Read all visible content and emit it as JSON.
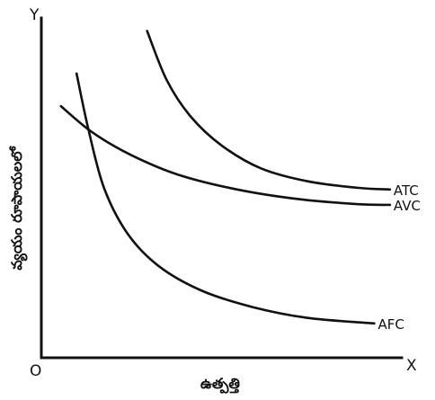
{
  "chart_data": {
    "type": "line",
    "xlabel": "ఉత్పత్తి",
    "ylabel": "వ్యయం రూపాయలలో",
    "axis_letters": {
      "x": "X",
      "y": "Y",
      "origin": "O"
    },
    "grid": false,
    "ticks": false,
    "series": [
      {
        "name": "ATC",
        "points": [
          [
            2.7,
            10
          ],
          [
            3.2,
            8.5
          ],
          [
            3.8,
            7.4
          ],
          [
            4.6,
            6.5
          ],
          [
            5.6,
            5.8
          ],
          [
            6.8,
            5.4
          ],
          [
            8.1,
            5.2
          ],
          [
            8.9,
            5.15
          ]
        ]
      },
      {
        "name": "AVC",
        "points": [
          [
            0.5,
            7.7
          ],
          [
            1.3,
            6.9
          ],
          [
            2.3,
            6.2
          ],
          [
            3.5,
            5.6
          ],
          [
            5.0,
            5.15
          ],
          [
            6.6,
            4.85
          ],
          [
            8.1,
            4.7
          ],
          [
            8.9,
            4.68
          ]
        ]
      },
      {
        "name": "AFC",
        "points": [
          [
            0.9,
            8.7
          ],
          [
            1.2,
            7.0
          ],
          [
            1.6,
            5.2
          ],
          [
            2.2,
            3.8
          ],
          [
            3.0,
            2.8
          ],
          [
            4.1,
            2.05
          ],
          [
            5.4,
            1.55
          ],
          [
            6.8,
            1.22
          ],
          [
            8.5,
            1.05
          ]
        ]
      }
    ],
    "xlim": [
      0,
      9.2
    ],
    "ylim": [
      0,
      10.4
    ]
  }
}
